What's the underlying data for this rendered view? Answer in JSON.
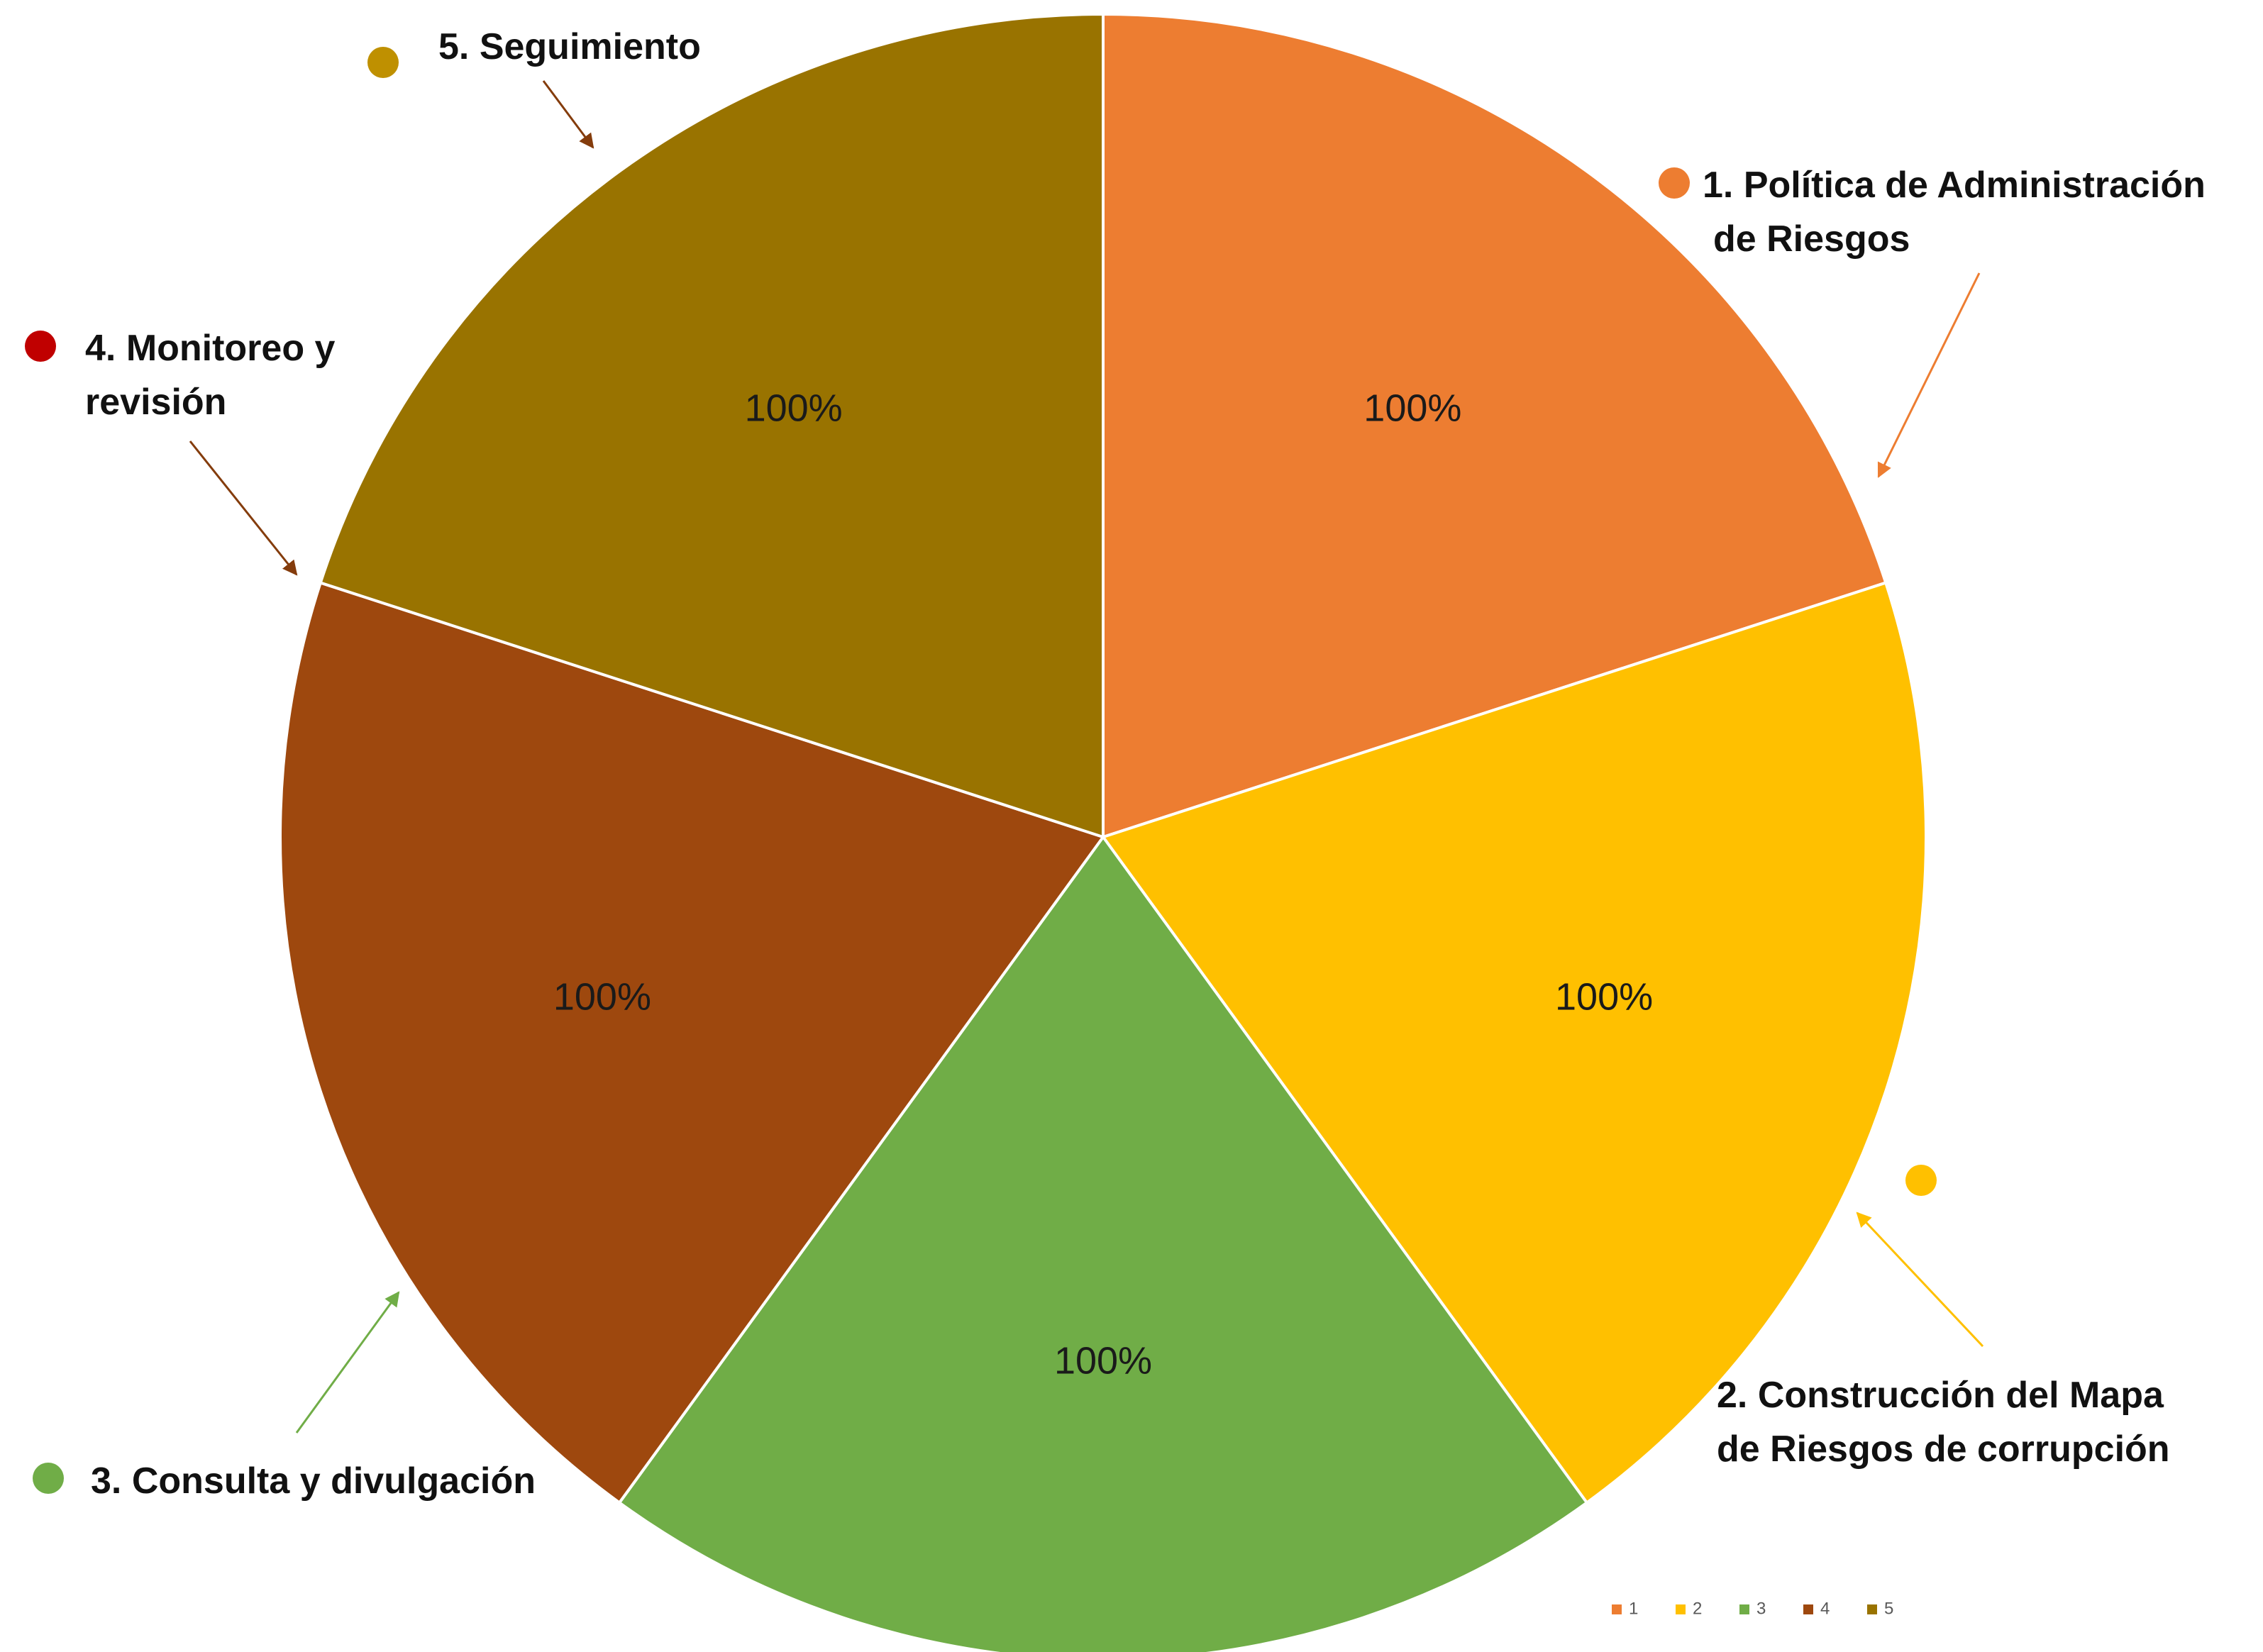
{
  "chart_data": {
    "type": "pie",
    "categories": [
      "1",
      "2",
      "3",
      "4",
      "5"
    ],
    "values": [
      100,
      100,
      100,
      100,
      100
    ],
    "data_labels": [
      "100%",
      "100%",
      "100%",
      "100%",
      "100%"
    ],
    "colors": [
      "#ED7D31",
      "#FFC000",
      "#70AD47",
      "#9E480E",
      "#997300"
    ],
    "title": "",
    "legend": {
      "position": "bottom-right",
      "entries": [
        "1",
        "2",
        "3",
        "4",
        "5"
      ]
    },
    "callouts": [
      {
        "lines": [
          "1.   Política de Administración",
          "de Riesgos"
        ],
        "dot_color": "#ED7D31"
      },
      {
        "lines": [
          "2. Construcción del Mapa",
          "de Riesgos de corrupción"
        ],
        "dot_color": "#FFC000"
      },
      {
        "lines": [
          "3. Consulta y divulgación"
        ],
        "dot_color": "#70AD47"
      },
      {
        "lines": [
          "4. Monitoreo y",
          "revisión"
        ],
        "dot_color": "#C00000"
      },
      {
        "lines": [
          "5. Seguimiento"
        ],
        "dot_color": "#BF9000"
      }
    ]
  }
}
